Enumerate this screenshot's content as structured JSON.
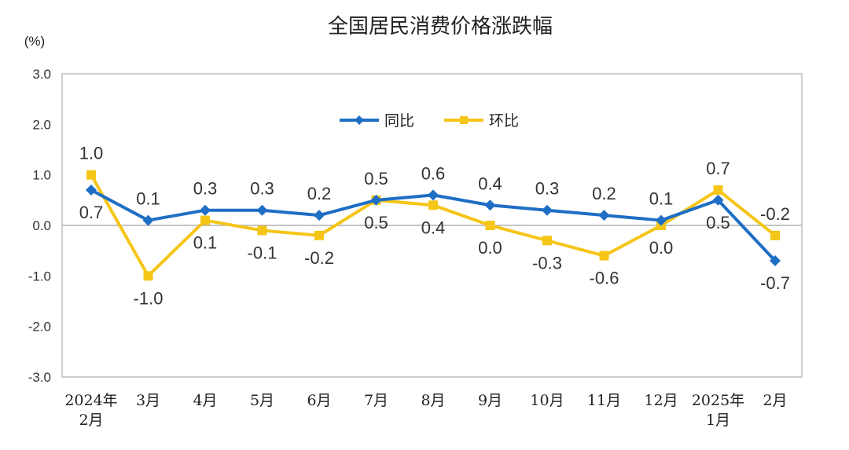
{
  "chart_data": {
    "type": "line",
    "title": "全国居民消费价格涨跌幅",
    "unit_label": "(%)",
    "ylim": [
      -3.0,
      3.0
    ],
    "yticks": [
      "3.0",
      "2.0",
      "1.0",
      "0.0",
      "-1.0",
      "-2.0",
      "-3.0"
    ],
    "categories": [
      [
        "2024年",
        "2月"
      ],
      [
        "3月"
      ],
      [
        "4月"
      ],
      [
        "5月"
      ],
      [
        "6月"
      ],
      [
        "7月"
      ],
      [
        "8月"
      ],
      [
        "9月"
      ],
      [
        "10月"
      ],
      [
        "11月"
      ],
      [
        "12月"
      ],
      [
        "2025年",
        "1月"
      ],
      [
        "2月"
      ]
    ],
    "legend_position": "top-center",
    "series": [
      {
        "name": "同比",
        "color": "#1f6ec5",
        "marker": "diamond",
        "values": [
          0.7,
          0.1,
          0.3,
          0.3,
          0.2,
          0.5,
          0.6,
          0.4,
          0.3,
          0.2,
          0.1,
          0.5,
          -0.7
        ],
        "labels": [
          "0.7",
          "0.1",
          "0.3",
          "0.3",
          "0.2",
          "0.5",
          "0.6",
          "0.4",
          "0.3",
          "0.2",
          "0.1",
          "0.5",
          "-0.7"
        ],
        "label_pos": [
          "below",
          "above",
          "above",
          "above",
          "above",
          "above",
          "above",
          "above",
          "above",
          "above",
          "above",
          "below",
          "below"
        ]
      },
      {
        "name": "环比",
        "color": "#f5c518",
        "marker": "square",
        "values": [
          1.0,
          -1.0,
          0.1,
          -0.1,
          -0.2,
          0.5,
          0.4,
          0.0,
          -0.3,
          -0.6,
          0.0,
          0.7,
          -0.2
        ],
        "labels": [
          "1.0",
          "-1.0",
          "0.1",
          "-0.1",
          "-0.2",
          "0.5",
          "0.4",
          "0.0",
          "-0.3",
          "-0.6",
          "0.0",
          "0.7",
          "-0.2"
        ],
        "label_pos": [
          "above",
          "below",
          "below",
          "below",
          "below",
          "below",
          "below",
          "below",
          "below",
          "below",
          "below",
          "above",
          "above"
        ]
      }
    ],
    "grid": false
  }
}
